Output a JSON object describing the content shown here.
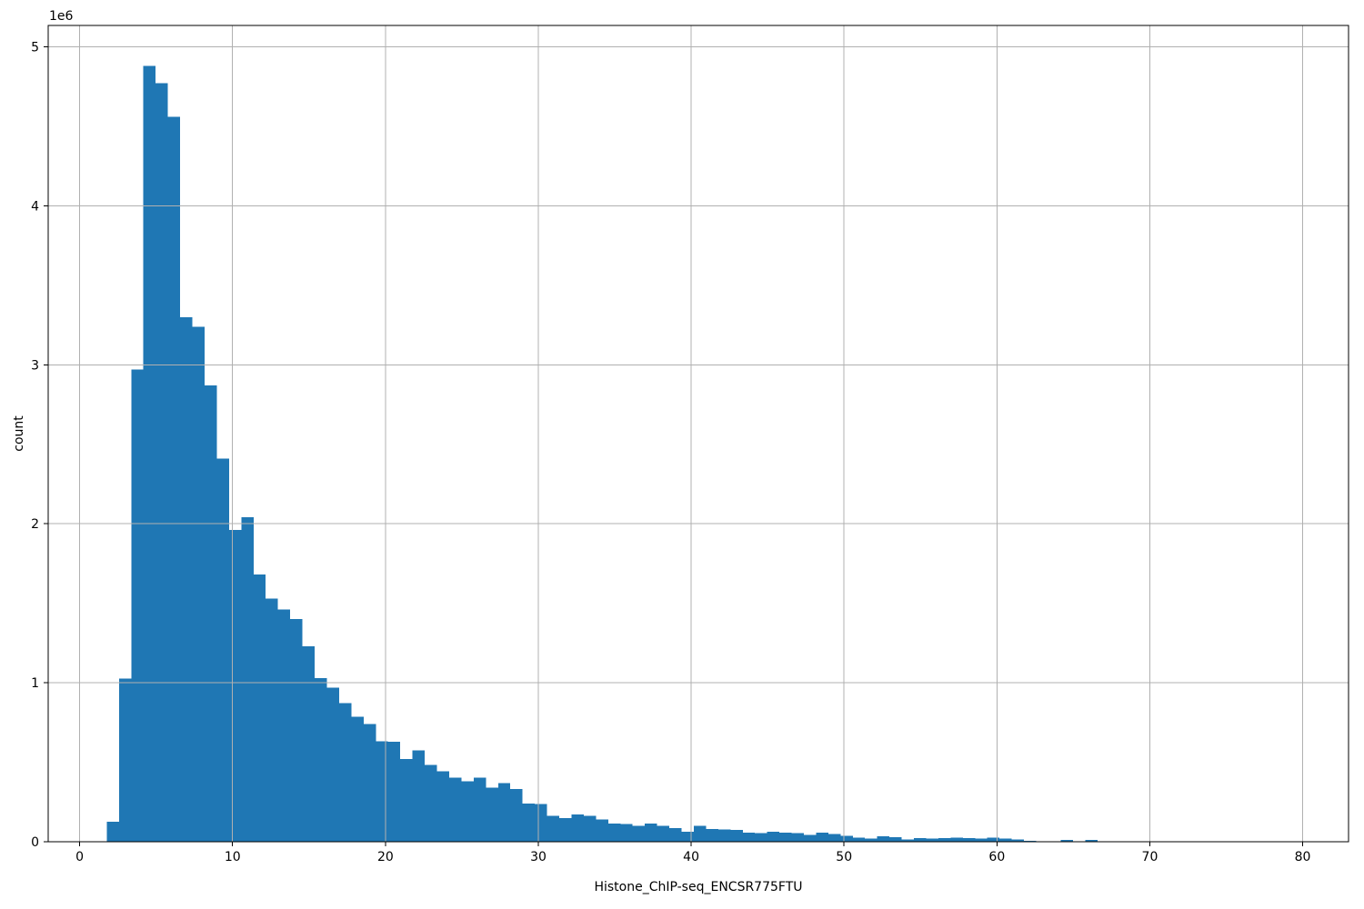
{
  "figure": {
    "xlabel": "Histone_ChIP-seq_ENCSR775FTU",
    "ylabel": "count",
    "y_offset_label": "1e6",
    "colors": {
      "bar": "#1f77b4",
      "grid": "#b0b0b0",
      "frame": "#000000",
      "text": "#000000",
      "background": "#ffffff"
    }
  },
  "chart_data": {
    "type": "bar",
    "subtype": "histogram",
    "title": "",
    "xlabel": "Histone_ChIP-seq_ENCSR775FTU",
    "ylabel": "count",
    "y_scale_offset": "1e6",
    "legend": null,
    "grid": true,
    "grid_above_bars": true,
    "bin_start": 1.77,
    "bin_width": 0.8,
    "counts": [
      127000,
      1025000,
      2970000,
      4880000,
      4770000,
      4560000,
      3300000,
      3240000,
      2870000,
      2410000,
      1960000,
      2040000,
      1680000,
      1530000,
      1460000,
      1400000,
      1230000,
      1030000,
      968000,
      873000,
      787000,
      739000,
      631000,
      628000,
      520000,
      574000,
      482000,
      444000,
      402000,
      381000,
      402000,
      339000,
      368000,
      333000,
      241000,
      238000,
      164000,
      149000,
      172000,
      164000,
      139000,
      114000,
      112000,
      101000,
      114000,
      101000,
      87000,
      63000,
      101000,
      80000,
      76000,
      74000,
      57000,
      53000,
      63000,
      57000,
      53000,
      44000,
      57000,
      50000,
      38000,
      25000,
      19000,
      34000,
      30000,
      15000,
      23000,
      19000,
      23000,
      25000,
      24000,
      19000,
      25000,
      19000,
      15000,
      6000,
      0,
      0,
      11000,
      0,
      11000
    ],
    "x_ticks": {
      "values": [
        0,
        10,
        20,
        30,
        40,
        50,
        60,
        70,
        80
      ],
      "labels": [
        "0",
        "10",
        "20",
        "30",
        "40",
        "50",
        "60",
        "70",
        "80"
      ]
    },
    "y_ticks": {
      "values": [
        0,
        1000000,
        2000000,
        3000000,
        4000000,
        5000000
      ],
      "labels": [
        "0",
        "1",
        "2",
        "3",
        "4",
        "5"
      ]
    },
    "xlim": [
      -2.06,
      83.0
    ],
    "ylim": [
      0,
      5134000
    ]
  }
}
